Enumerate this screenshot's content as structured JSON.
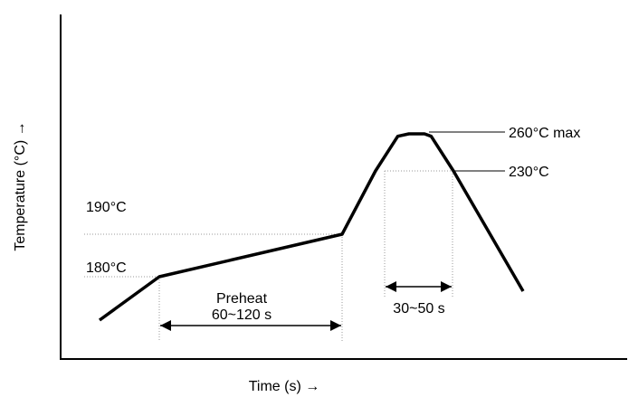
{
  "chart_data": {
    "type": "line",
    "xlabel": "Time (s) →",
    "ylabel": "Temperature (°C)  →",
    "series": [
      {
        "points": [
          [
            -30,
            165
          ],
          [
            0,
            180
          ],
          [
            120,
            190
          ],
          [
            135,
            230
          ],
          [
            145,
            258
          ],
          [
            150,
            260
          ],
          [
            157,
            260
          ],
          [
            160,
            258
          ],
          [
            170,
            230
          ],
          [
            200,
            175
          ]
        ]
      }
    ],
    "annotations": {
      "level_190": "190°C",
      "level_180": "180°C",
      "peak_max": "260°C max",
      "level_230": "230°C",
      "preheat_label": "Preheat",
      "preheat_range": "60~120 s",
      "reflow_range": "30~50  s"
    },
    "colors": {
      "line": "#000000",
      "guide": "#9a9a9a"
    }
  }
}
